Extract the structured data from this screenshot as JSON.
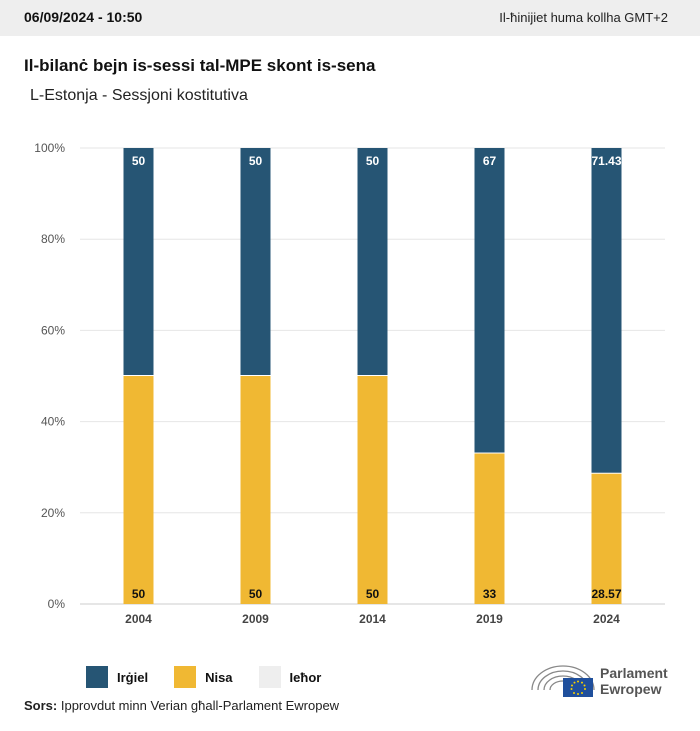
{
  "header": {
    "datetime": "06/09/2024 - 10:50",
    "timezone": "Il-ħinijiet huma kollha GMT+2"
  },
  "title": "Il-bilanċ bejn is-sessi tal-MPE skont is-sena",
  "subtitle": "L-Estonja - Sessjoni kostitutiva",
  "colors": {
    "men": "#265574",
    "women": "#f0b833",
    "other": "#eeeeee"
  },
  "chart_data": {
    "type": "bar",
    "stacked": true,
    "categories": [
      "2004",
      "2009",
      "2014",
      "2019",
      "2024"
    ],
    "series": [
      {
        "name": "Nisa",
        "values": [
          50,
          50,
          50,
          33,
          28.57
        ],
        "labels": [
          "50",
          "50",
          "50",
          "33",
          "28.57"
        ]
      },
      {
        "name": "Irġiel",
        "values": [
          50,
          50,
          50,
          67,
          71.43
        ],
        "labels": [
          "50",
          "50",
          "50",
          "67",
          "71.43"
        ]
      }
    ],
    "ylim": [
      0,
      100
    ],
    "yticks": [
      "0%",
      "20%",
      "40%",
      "60%",
      "80%",
      "100%"
    ],
    "grid": true
  },
  "legend": [
    {
      "label": "Irġiel",
      "color": "#265574"
    },
    {
      "label": "Nisa",
      "color": "#f0b833"
    },
    {
      "label": "Ieħor",
      "color": "#eeeeee"
    }
  ],
  "source": {
    "label": "Sors:",
    "text": "Ipprovdut minn Verian għall-Parlament Ewropew"
  },
  "logo": {
    "line1": "Parlament",
    "line2": "Ewropew"
  }
}
